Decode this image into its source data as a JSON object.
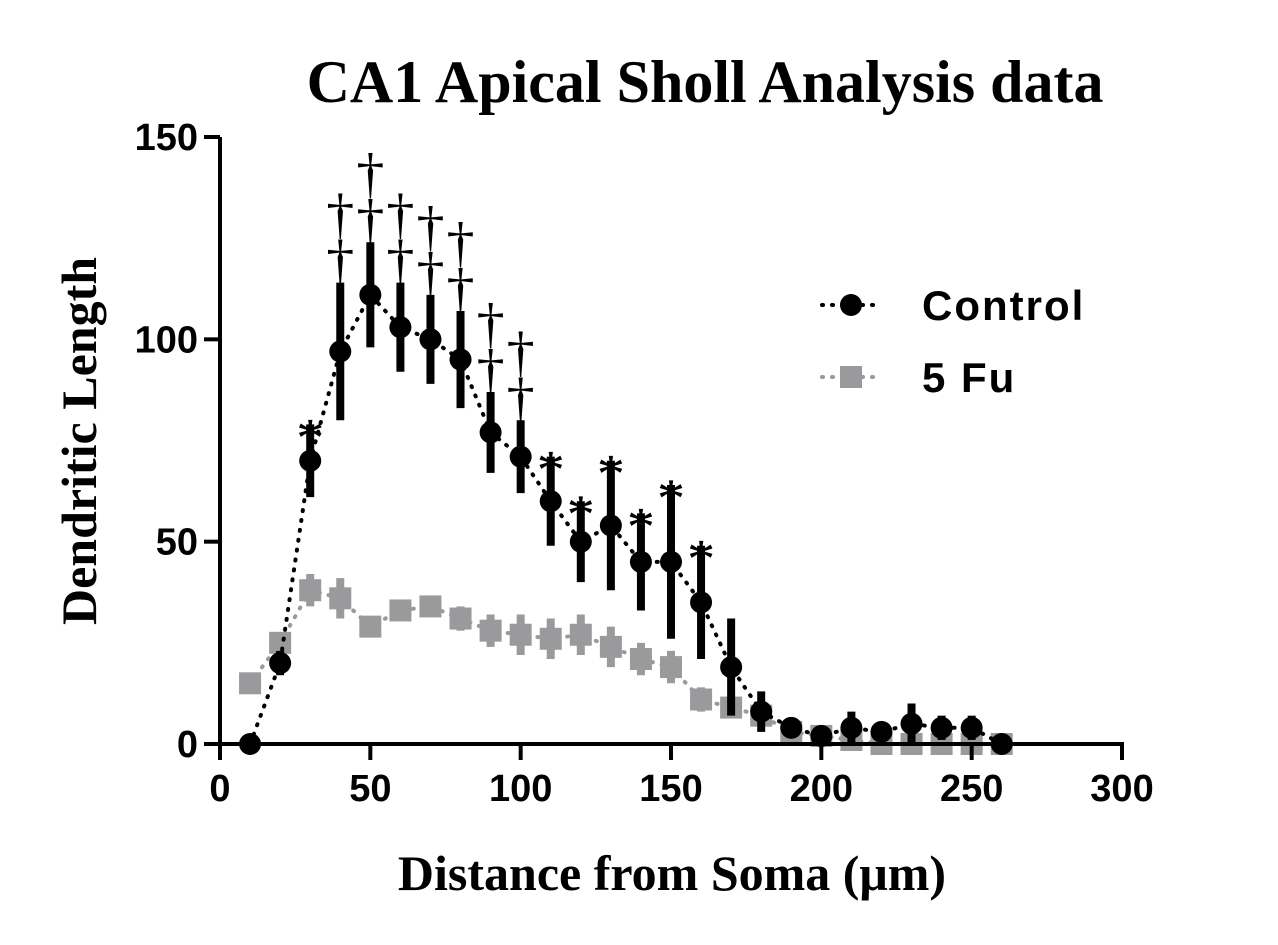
{
  "chart_data": {
    "type": "scatter",
    "title": "CA1 Apical Sholl Analysis data",
    "xlabel": "Distance from Soma (μm)",
    "ylabel": "Dendritic Length",
    "xlim": [
      0,
      300
    ],
    "ylim": [
      0,
      150
    ],
    "xticks": [
      "0",
      "50",
      "100",
      "150",
      "200",
      "250",
      "300"
    ],
    "yticks": [
      "0",
      "50",
      "100",
      "150"
    ],
    "legend_position": "top-right",
    "series": [
      {
        "name": "Control",
        "color": "#000000",
        "marker": "circle",
        "line": "dotted",
        "x": [
          10,
          20,
          30,
          40,
          50,
          60,
          70,
          80,
          90,
          100,
          110,
          120,
          130,
          140,
          150,
          160,
          170,
          180,
          190,
          200,
          210,
          220,
          230,
          240,
          250,
          260
        ],
        "y": [
          0,
          20,
          70,
          97,
          111,
          103,
          100,
          95,
          77,
          71,
          60,
          50,
          54,
          45,
          45,
          35,
          19,
          8,
          4,
          2,
          4,
          3,
          5,
          4,
          4,
          0
        ],
        "err": [
          0,
          3,
          9,
          17,
          13,
          11,
          11,
          12,
          10,
          9,
          11,
          10,
          16,
          12,
          19,
          14,
          12,
          5,
          2,
          1,
          4,
          2,
          5,
          3,
          3,
          0
        ]
      },
      {
        "name": "5 Fu",
        "color": "#9a9a9c",
        "marker": "square",
        "line": "dotted",
        "x": [
          10,
          20,
          30,
          40,
          50,
          60,
          70,
          80,
          90,
          100,
          110,
          120,
          130,
          140,
          150,
          160,
          170,
          180,
          190,
          200,
          210,
          220,
          230,
          240,
          250,
          260
        ],
        "y": [
          15,
          25,
          38,
          36,
          29,
          33,
          34,
          31,
          28,
          27,
          26,
          27,
          24,
          21,
          19,
          11,
          9,
          7,
          3,
          2,
          1,
          0,
          0,
          0,
          0,
          0
        ],
        "err": [
          0,
          0,
          4,
          5,
          0,
          0,
          0,
          3,
          4,
          5,
          5,
          5,
          5,
          4,
          4,
          3,
          2,
          0,
          0,
          0,
          0,
          0,
          0,
          0,
          0,
          0
        ]
      }
    ],
    "annotations": [
      {
        "x": 30,
        "symbols": [
          "*"
        ]
      },
      {
        "x": 40,
        "symbols": [
          "†",
          "†"
        ]
      },
      {
        "x": 50,
        "symbols": [
          "†",
          "†"
        ]
      },
      {
        "x": 60,
        "symbols": [
          "†",
          "†"
        ]
      },
      {
        "x": 70,
        "symbols": [
          "†",
          "†"
        ]
      },
      {
        "x": 80,
        "symbols": [
          "†",
          "†"
        ]
      },
      {
        "x": 90,
        "symbols": [
          "†",
          "†"
        ]
      },
      {
        "x": 100,
        "symbols": [
          "†",
          "†"
        ]
      },
      {
        "x": 110,
        "symbols": [
          "*"
        ]
      },
      {
        "x": 120,
        "symbols": [
          "*"
        ]
      },
      {
        "x": 130,
        "symbols": [
          "*"
        ]
      },
      {
        "x": 140,
        "symbols": [
          "*"
        ]
      },
      {
        "x": 150,
        "symbols": [
          "*"
        ]
      },
      {
        "x": 160,
        "symbols": [
          "*"
        ]
      }
    ]
  }
}
